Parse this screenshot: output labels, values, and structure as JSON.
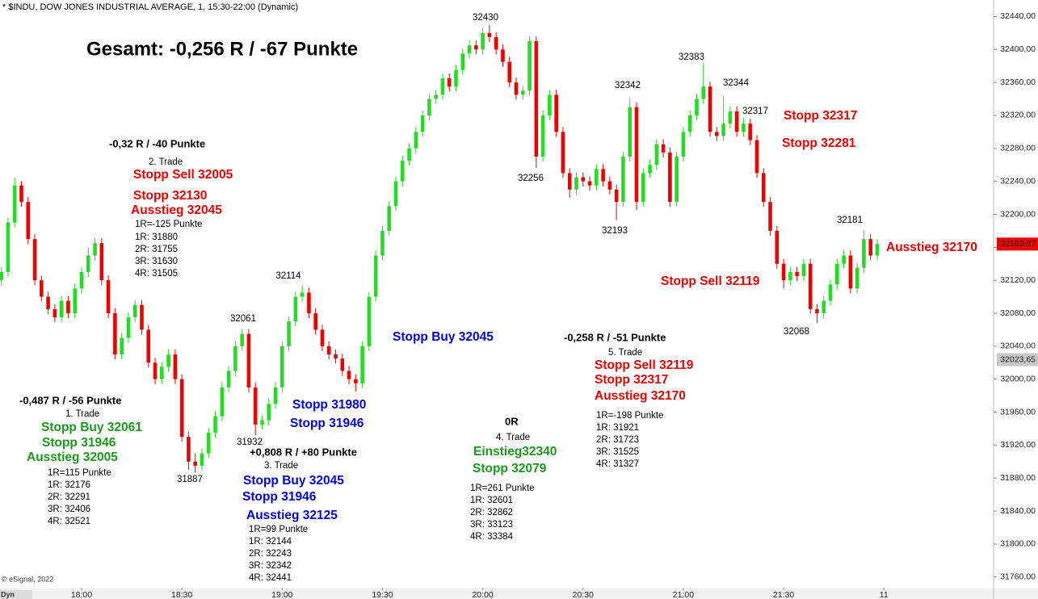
{
  "chart_data": {
    "type": "candlestick",
    "title": "* $INDU, DOW JONES INDUSTRIAL AVERAGE, 1, 15:30-22:00 (Dynamic)",
    "copyright": "© eSignal, 2022",
    "mode_label": "Dyn",
    "up_color": "#22dd22",
    "down_color": "#ee0000",
    "grid": false,
    "xlim": [
      -0.2,
      148.4
    ],
    "ylim": [
      31747,
      32460
    ],
    "xticks": [
      {
        "value": 12,
        "label": "18:00"
      },
      {
        "value": 27,
        "label": "18:30"
      },
      {
        "value": 42,
        "label": "19:00"
      },
      {
        "value": 57,
        "label": "19:30"
      },
      {
        "value": 72,
        "label": "20:00"
      },
      {
        "value": 87,
        "label": "20:30"
      },
      {
        "value": 102,
        "label": "21:00"
      },
      {
        "value": 117,
        "label": "21:30"
      },
      {
        "value": 132,
        "label": "11"
      }
    ],
    "yticks": [
      {
        "value": 31760,
        "label": "31760,00"
      },
      {
        "value": 31800,
        "label": "31800,00"
      },
      {
        "value": 31840,
        "label": "31840,00"
      },
      {
        "value": 31880,
        "label": "31880,00"
      },
      {
        "value": 31920,
        "label": "31920,00"
      },
      {
        "value": 31960,
        "label": "31960,00"
      },
      {
        "value": 32000,
        "label": "32000,00"
      },
      {
        "value": 32040,
        "label": "32040,00"
      },
      {
        "value": 32080,
        "label": "32080,00"
      },
      {
        "value": 32120,
        "label": "32120,00"
      },
      {
        "value": 32160,
        "label": "32160,00"
      },
      {
        "value": 32200,
        "label": "32200,00"
      },
      {
        "value": 32240,
        "label": "32240,00"
      },
      {
        "value": 32280,
        "label": "32280,00"
      },
      {
        "value": 32320,
        "label": "32320,00"
      },
      {
        "value": 32360,
        "label": "32360,00"
      },
      {
        "value": 32400,
        "label": "32400,00"
      },
      {
        "value": 32440,
        "label": "32440,00"
      }
    ],
    "last_price": {
      "value": 32163.87,
      "label": "32163,87",
      "color": "#ee0000"
    },
    "marker_price": {
      "value": 32023.65,
      "label": "32023,65",
      "color": "#c8c8c8"
    },
    "candles": {
      "open": [
        32120,
        32130,
        32190,
        32235,
        32215,
        32170,
        32120,
        32100,
        32085,
        32075,
        32095,
        32080,
        32110,
        32130,
        32150,
        32165,
        32120,
        32080,
        32030,
        32050,
        32075,
        32090,
        32060,
        32020,
        32000,
        32015,
        32030,
        32000,
        31930,
        31900,
        31895,
        31910,
        31935,
        31955,
        31990,
        32010,
        32040,
        32055,
        31990,
        31945,
        31950,
        31970,
        31990,
        32040,
        32070,
        32100,
        32105,
        32080,
        32060,
        32040,
        32030,
        32025,
        32010,
        32000,
        31995,
        32040,
        32100,
        32150,
        32180,
        32210,
        32240,
        32265,
        32280,
        32300,
        32320,
        32340,
        32345,
        32365,
        32355,
        32375,
        32395,
        32405,
        32400,
        32420,
        32415,
        32400,
        32385,
        32360,
        32345,
        32350,
        32410,
        32270,
        32320,
        32345,
        32300,
        32250,
        32230,
        32245,
        32240,
        32235,
        32255,
        32240,
        32230,
        32215,
        32270,
        32330,
        32215,
        32250,
        32260,
        32285,
        32275,
        32215,
        32270,
        32300,
        32320,
        32340,
        32355,
        32300,
        32295,
        32310,
        32325,
        32300,
        32310,
        32290,
        32250,
        32215,
        32180,
        32140,
        32120,
        32130,
        32125,
        32140,
        32085,
        32080,
        32095,
        32115,
        32140,
        32150,
        32110,
        32135,
        32170,
        32150
      ],
      "high": [
        32136,
        32196,
        32245,
        32240,
        32221,
        32176,
        32126,
        32106,
        32091,
        32101,
        32101,
        32116,
        32136,
        32160,
        32171,
        32171,
        32126,
        32086,
        32056,
        32081,
        32096,
        32096,
        32066,
        32026,
        32021,
        32036,
        32036,
        32006,
        31936,
        31910,
        31916,
        31941,
        31961,
        31996,
        32016,
        32046,
        32061,
        32061,
        31996,
        31956,
        31976,
        31996,
        32046,
        32076,
        32106,
        32114,
        32111,
        32086,
        32066,
        32046,
        32036,
        32031,
        32016,
        32006,
        32046,
        32106,
        32156,
        32186,
        32216,
        32246,
        32271,
        32286,
        32306,
        32326,
        32346,
        32351,
        32371,
        32371,
        32381,
        32401,
        32411,
        32411,
        32426,
        32430,
        32421,
        32406,
        32391,
        32366,
        32356,
        32416,
        32416,
        32326,
        32351,
        32351,
        32306,
        32256,
        32251,
        32251,
        32246,
        32261,
        32261,
        32246,
        32236,
        32276,
        32342,
        32336,
        32256,
        32266,
        32291,
        32291,
        32281,
        32276,
        32306,
        32326,
        32346,
        32383,
        32361,
        32306,
        32344,
        32331,
        32331,
        32317,
        32316,
        32296,
        32256,
        32221,
        32186,
        32146,
        32136,
        32136,
        32146,
        32146,
        32091,
        32101,
        32121,
        32146,
        32156,
        32156,
        32141,
        32181,
        32176,
        32170
      ],
      "low": [
        32114,
        32124,
        32184,
        32209,
        32164,
        32114,
        32094,
        32079,
        32069,
        32069,
        32074,
        32074,
        32104,
        32124,
        32144,
        32114,
        32074,
        32024,
        32024,
        32044,
        32069,
        32054,
        32014,
        31994,
        31994,
        32009,
        31994,
        31924,
        31890,
        31887,
        31889,
        31904,
        31929,
        31949,
        31984,
        32004,
        32034,
        31984,
        31932,
        31939,
        31944,
        31964,
        31984,
        32034,
        32064,
        32094,
        32074,
        32054,
        32034,
        32024,
        32019,
        32004,
        31994,
        31985,
        31989,
        32034,
        32094,
        32144,
        32174,
        32204,
        32234,
        32259,
        32274,
        32294,
        32314,
        32334,
        32339,
        32349,
        32349,
        32369,
        32389,
        32394,
        32394,
        32409,
        32394,
        32379,
        32354,
        32339,
        32339,
        32344,
        32256,
        32264,
        32314,
        32294,
        32244,
        32220,
        32224,
        32234,
        32229,
        32229,
        32234,
        32224,
        32193,
        32209,
        32264,
        32205,
        32209,
        32244,
        32254,
        32269,
        32209,
        32209,
        32264,
        32294,
        32314,
        32334,
        32294,
        32289,
        32289,
        32304,
        32294,
        32294,
        32284,
        32244,
        32209,
        32174,
        32134,
        32110,
        32114,
        32119,
        32119,
        32079,
        32068,
        32074,
        32089,
        32109,
        32134,
        32104,
        32104,
        32129,
        32144,
        32144
      ],
      "close": [
        32130,
        32190,
        32235,
        32215,
        32170,
        32120,
        32100,
        32085,
        32075,
        32095,
        32080,
        32110,
        32130,
        32150,
        32165,
        32120,
        32080,
        32030,
        32050,
        32075,
        32090,
        32060,
        32020,
        32000,
        32015,
        32030,
        32000,
        31930,
        31900,
        31895,
        31910,
        31935,
        31955,
        31990,
        32010,
        32040,
        32055,
        31990,
        31945,
        31950,
        31970,
        31990,
        32040,
        32070,
        32100,
        32105,
        32080,
        32060,
        32040,
        32030,
        32025,
        32010,
        32000,
        31995,
        32040,
        32100,
        32150,
        32180,
        32210,
        32240,
        32265,
        32280,
        32300,
        32320,
        32340,
        32345,
        32365,
        32355,
        32375,
        32395,
        32405,
        32400,
        32420,
        32415,
        32400,
        32385,
        32360,
        32345,
        32350,
        32410,
        32270,
        32320,
        32345,
        32300,
        32250,
        32230,
        32245,
        32240,
        32235,
        32255,
        32240,
        32230,
        32215,
        32270,
        32330,
        32215,
        32250,
        32260,
        32285,
        32275,
        32215,
        32270,
        32300,
        32320,
        32340,
        32355,
        32300,
        32295,
        32310,
        32325,
        32300,
        32310,
        32290,
        32250,
        32215,
        32180,
        32140,
        32120,
        32130,
        32125,
        32140,
        32085,
        32080,
        32095,
        32115,
        32140,
        32150,
        32110,
        32135,
        32170,
        32150,
        32164
      ]
    },
    "annotations": [
      {
        "text": "Gesamt: -0,256 R / -67 Punkte",
        "color": "#000000"
      },
      {
        "text": "-0,32 R / -40 Punkte",
        "color": "#000000"
      },
      {
        "text": "2. Trade",
        "color": "#000000"
      },
      {
        "text": "Stopp Sell 32005",
        "color": "#ee0000"
      },
      {
        "text": "Stopp 32130",
        "color": "#ee0000"
      },
      {
        "text": "Ausstieg 32045",
        "color": "#ee0000"
      },
      {
        "text": "1R=-125 Punkte",
        "color": "#000000"
      },
      {
        "text": "1R: 31880",
        "color": "#000000"
      },
      {
        "text": "2R: 31755",
        "color": "#000000"
      },
      {
        "text": "3R: 31630",
        "color": "#000000"
      },
      {
        "text": "4R: 31505",
        "color": "#000000"
      },
      {
        "text": "-0,487 R / -56 Punkte",
        "color": "#000000"
      },
      {
        "text": "1. Trade",
        "color": "#000000"
      },
      {
        "text": "Stopp Buy 32061",
        "color": "#1a9a1a"
      },
      {
        "text": "Stopp 31946",
        "color": "#1a9a1a"
      },
      {
        "text": "Ausstieg 32005",
        "color": "#1a9a1a"
      },
      {
        "text": "1R=115 Punkte",
        "color": "#000000"
      },
      {
        "text": "1R: 32176",
        "color": "#000000"
      },
      {
        "text": "2R: 32291",
        "color": "#000000"
      },
      {
        "text": "3R: 32406",
        "color": "#000000"
      },
      {
        "text": "4R: 32521",
        "color": "#000000"
      },
      {
        "text": "+0,808 R / +80 Punkte",
        "color": "#000000"
      },
      {
        "text": "3. Trade",
        "color": "#000000"
      },
      {
        "text": "Stopp Buy 32045",
        "color": "#0000dd"
      },
      {
        "text": "Stopp 31946",
        "color": "#0000dd"
      },
      {
        "text": "Ausstieg 32125",
        "color": "#0000dd"
      },
      {
        "text": "1R=99 Punkte",
        "color": "#000000"
      },
      {
        "text": "1R: 32144",
        "color": "#000000"
      },
      {
        "text": "2R: 32243",
        "color": "#000000"
      },
      {
        "text": "3R: 32342",
        "color": "#000000"
      },
      {
        "text": "4R: 32441",
        "color": "#000000"
      },
      {
        "text": "Stopp 31980",
        "color": "#0000dd"
      },
      {
        "text": "Stopp 31946",
        "color": "#0000dd"
      },
      {
        "text": "Stopp Buy 32045",
        "color": "#0000dd"
      },
      {
        "text": "0R",
        "color": "#000000"
      },
      {
        "text": "4. Trade",
        "color": "#000000"
      },
      {
        "text": "Einstieg32340",
        "color": "#1a9a1a"
      },
      {
        "text": "Stopp 32079",
        "color": "#1a9a1a"
      },
      {
        "text": "1R=261 Punkte",
        "color": "#000000"
      },
      {
        "text": "1R: 32601",
        "color": "#000000"
      },
      {
        "text": "2R: 32862",
        "color": "#000000"
      },
      {
        "text": "3R: 33123",
        "color": "#000000"
      },
      {
        "text": "4R: 33384",
        "color": "#000000"
      },
      {
        "text": "-0,258 R / -51 Punkte",
        "color": "#000000"
      },
      {
        "text": "5. Trade",
        "color": "#000000"
      },
      {
        "text": "Stopp Sell 32119",
        "color": "#ee0000"
      },
      {
        "text": "Stopp 32317",
        "color": "#ee0000"
      },
      {
        "text": "Ausstieg 32170",
        "color": "#ee0000"
      },
      {
        "text": "1R=-198 Punkte",
        "color": "#000000"
      },
      {
        "text": "1R: 31921",
        "color": "#000000"
      },
      {
        "text": "2R: 31723",
        "color": "#000000"
      },
      {
        "text": "3R: 31525",
        "color": "#000000"
      },
      {
        "text": "4R: 31327",
        "color": "#000000"
      },
      {
        "text": "Stopp 32317",
        "color": "#ee0000"
      },
      {
        "text": "Stopp 32281",
        "color": "#ee0000"
      },
      {
        "text": "Stopp Sell 32119",
        "color": "#ee0000"
      },
      {
        "text": "Ausstieg 32170",
        "color": "#ee0000"
      },
      {
        "text": "32430",
        "color": "#000000"
      },
      {
        "text": "32256",
        "color": "#000000"
      },
      {
        "text": "32342",
        "color": "#000000"
      },
      {
        "text": "32383",
        "color": "#000000"
      },
      {
        "text": "32344",
        "color": "#000000"
      },
      {
        "text": "32317",
        "color": "#000000"
      },
      {
        "text": "32193",
        "color": "#000000"
      },
      {
        "text": "32181",
        "color": "#000000"
      },
      {
        "text": "32068",
        "color": "#000000"
      },
      {
        "text": "32114",
        "color": "#000000"
      },
      {
        "text": "32061",
        "color": "#000000"
      },
      {
        "text": "31932",
        "color": "#000000"
      },
      {
        "text": "31887",
        "color": "#000000"
      }
    ]
  }
}
